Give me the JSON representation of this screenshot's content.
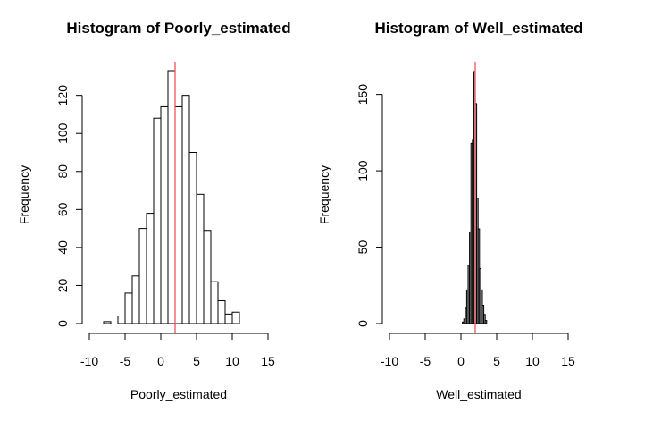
{
  "chart_data": [
    {
      "type": "bar",
      "subtype": "histogram",
      "title": "Histogram of Poorly_estimated",
      "xlabel": "Poorly_estimated",
      "ylabel": "Frequency",
      "xlim": [
        -10,
        15
      ],
      "ylim": [
        0,
        133
      ],
      "x_ticks": [
        -10,
        -5,
        0,
        5,
        10,
        15
      ],
      "x_tick_labels": [
        "-10",
        "-5",
        "0",
        "5",
        "10",
        "15"
      ],
      "y_ticks": [
        0,
        20,
        40,
        60,
        80,
        100,
        120
      ],
      "y_tick_labels": [
        "0",
        "20",
        "40",
        "60",
        "80",
        "100",
        "120"
      ],
      "bins": [
        {
          "x0": -8,
          "x1": -7,
          "count": 1
        },
        {
          "x0": -7,
          "x1": -6,
          "count": 0
        },
        {
          "x0": -6,
          "x1": -5,
          "count": 4
        },
        {
          "x0": -5,
          "x1": -4,
          "count": 16
        },
        {
          "x0": -4,
          "x1": -3,
          "count": 25
        },
        {
          "x0": -3,
          "x1": -2,
          "count": 50
        },
        {
          "x0": -2,
          "x1": -1,
          "count": 58
        },
        {
          "x0": -1,
          "x1": 0,
          "count": 108
        },
        {
          "x0": 0,
          "x1": 1,
          "count": 114
        },
        {
          "x0": 1,
          "x1": 2,
          "count": 133
        },
        {
          "x0": 2,
          "x1": 3,
          "count": 114
        },
        {
          "x0": 3,
          "x1": 4,
          "count": 120
        },
        {
          "x0": 4,
          "x1": 5,
          "count": 90
        },
        {
          "x0": 5,
          "x1": 6,
          "count": 68
        },
        {
          "x0": 6,
          "x1": 7,
          "count": 49
        },
        {
          "x0": 7,
          "x1": 8,
          "count": 22
        },
        {
          "x0": 8,
          "x1": 9,
          "count": 12
        },
        {
          "x0": 9,
          "x1": 10,
          "count": 5
        },
        {
          "x0": 10,
          "x1": 11,
          "count": 6
        }
      ],
      "bar_fill": "#ffffff",
      "reference_line": {
        "x": 2,
        "color": "#e8474f"
      },
      "grid": false
    },
    {
      "type": "bar",
      "subtype": "histogram",
      "title": "Histogram of Well_estimated",
      "xlabel": "Well_estimated",
      "ylabel": "Frequency",
      "xlim": [
        -10,
        15
      ],
      "ylim": [
        0,
        165
      ],
      "x_ticks": [
        -10,
        -5,
        0,
        5,
        10,
        15
      ],
      "x_tick_labels": [
        "-10",
        "-5",
        "0",
        "5",
        "10",
        "15"
      ],
      "y_ticks": [
        0,
        50,
        100,
        150
      ],
      "y_tick_labels": [
        "0",
        "50",
        "100",
        "150"
      ],
      "bins": [
        {
          "x0": 0.2,
          "x1": 0.4,
          "count": 1
        },
        {
          "x0": 0.4,
          "x1": 0.6,
          "count": 3
        },
        {
          "x0": 0.6,
          "x1": 0.8,
          "count": 10
        },
        {
          "x0": 0.8,
          "x1": 1.0,
          "count": 22
        },
        {
          "x0": 1.0,
          "x1": 1.2,
          "count": 38
        },
        {
          "x0": 1.2,
          "x1": 1.4,
          "count": 60
        },
        {
          "x0": 1.4,
          "x1": 1.6,
          "count": 118
        },
        {
          "x0": 1.6,
          "x1": 1.8,
          "count": 120
        },
        {
          "x0": 1.8,
          "x1": 2.0,
          "count": 165
        },
        {
          "x0": 2.0,
          "x1": 2.2,
          "count": 144
        },
        {
          "x0": 2.2,
          "x1": 2.4,
          "count": 82
        },
        {
          "x0": 2.4,
          "x1": 2.6,
          "count": 62
        },
        {
          "x0": 2.6,
          "x1": 2.8,
          "count": 36
        },
        {
          "x0": 2.8,
          "x1": 3.0,
          "count": 22
        },
        {
          "x0": 3.0,
          "x1": 3.2,
          "count": 12
        },
        {
          "x0": 3.2,
          "x1": 3.4,
          "count": 6
        },
        {
          "x0": 3.4,
          "x1": 3.6,
          "count": 2
        }
      ],
      "bar_fill": "#aaaaaa",
      "reference_line": {
        "x": 2,
        "color": "#e8474f"
      },
      "grid": false
    }
  ]
}
